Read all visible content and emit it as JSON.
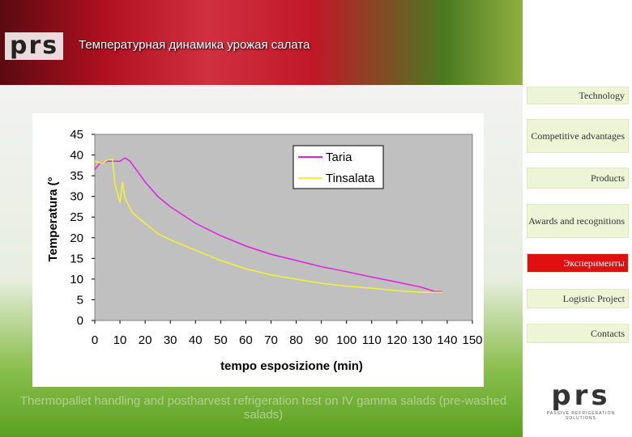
{
  "header": {
    "logo": "prs",
    "title": "Температурная динамика урожая салата"
  },
  "nav": {
    "items": [
      "Technology",
      "Competitive advantages",
      "Products",
      "Awards and recognitions",
      "Эксперименты",
      "Logistic Project",
      "Contacts"
    ],
    "active_index": 4
  },
  "footer_logo": {
    "mark": "prs",
    "tagline": "PASSIVE REFRIGERATION SOLUTIONS"
  },
  "caption": "Thermopallet handling and postharvest refrigeration test on IV gamma salads (pre-washed salads)",
  "chart_data": {
    "type": "line",
    "xlabel": "tempo esposizione (min)",
    "ylabel": "Temperatura (°",
    "xlim": [
      0,
      150
    ],
    "xticks": [
      0,
      10,
      20,
      30,
      40,
      50,
      60,
      70,
      80,
      90,
      100,
      110,
      120,
      130,
      140,
      150
    ],
    "ylim": [
      0,
      45
    ],
    "yticks": [
      0,
      5,
      10,
      15,
      20,
      25,
      30,
      35,
      40,
      45
    ],
    "legend": "top-right",
    "series": [
      {
        "name": "Taria",
        "color": "#e020e0",
        "x": [
          0,
          2,
          5,
          8,
          10,
          12,
          14,
          17,
          20,
          25,
          30,
          35,
          40,
          50,
          60,
          70,
          80,
          90,
          100,
          110,
          120,
          130,
          135,
          138
        ],
        "values": [
          36.5,
          38,
          38.5,
          38.5,
          38.5,
          39.3,
          38.5,
          36,
          33.5,
          30,
          27.5,
          25.5,
          23.5,
          20.5,
          18,
          16,
          14.5,
          13,
          11.8,
          10.5,
          9.3,
          8,
          7,
          7
        ]
      },
      {
        "name": "Tinsalata",
        "color": "#f4f430",
        "x": [
          0,
          3,
          5,
          7,
          8,
          10,
          11,
          12,
          15,
          20,
          25,
          30,
          40,
          50,
          60,
          70,
          80,
          90,
          100,
          110,
          120,
          130,
          138
        ],
        "values": [
          38.5,
          38,
          38.8,
          39,
          33,
          28.5,
          33.5,
          29.5,
          26,
          23.5,
          21,
          19.5,
          17,
          14.5,
          12.5,
          11,
          10,
          9,
          8.3,
          7.8,
          7.2,
          6.8,
          6.8
        ]
      }
    ]
  }
}
